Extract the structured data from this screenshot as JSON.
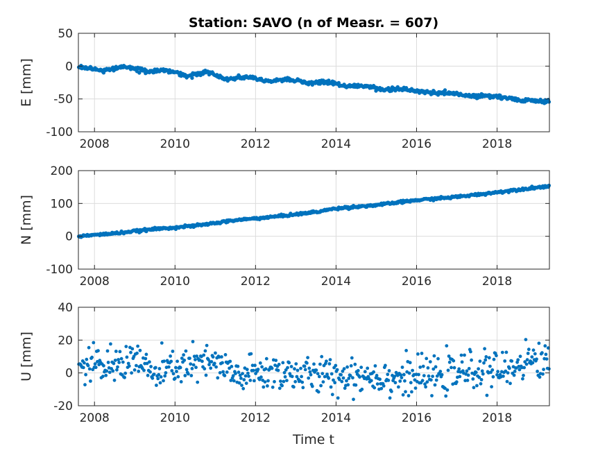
{
  "chart_data": {
    "title": "Station: SAVO (n of Measr. = 607)",
    "xlabel": "Time t",
    "type": "scatter",
    "marker_color": "#0072BD",
    "n_points": 607,
    "xlim": [
      2007.6,
      2019.3
    ],
    "xticks": [
      2008,
      2010,
      2012,
      2014,
      2016,
      2018
    ],
    "grid": true,
    "panels": [
      {
        "name": "E",
        "ylabel": "E [mm]",
        "ylim": [
          -100,
          50
        ],
        "yticks": [
          -100,
          -50,
          0,
          50
        ],
        "trend_knots": [
          [
            2007.6,
            -1
          ],
          [
            2008.2,
            -7
          ],
          [
            2008.8,
            -1
          ],
          [
            2009.3,
            -8
          ],
          [
            2009.8,
            -6
          ],
          [
            2010.3,
            -15
          ],
          [
            2010.8,
            -9
          ],
          [
            2011.3,
            -20
          ],
          [
            2011.8,
            -16
          ],
          [
            2012.3,
            -23
          ],
          [
            2012.8,
            -20
          ],
          [
            2013.3,
            -26
          ],
          [
            2013.8,
            -24
          ],
          [
            2014.3,
            -31
          ],
          [
            2014.8,
            -30
          ],
          [
            2015.2,
            -36
          ],
          [
            2015.7,
            -35
          ],
          [
            2016.3,
            -40
          ],
          [
            2016.8,
            -41
          ],
          [
            2017.4,
            -46
          ],
          [
            2017.9,
            -46
          ],
          [
            2018.5,
            -51
          ],
          [
            2019.3,
            -54
          ]
        ],
        "noise_mm": 1.5
      },
      {
        "name": "N",
        "ylabel": "N [mm]",
        "ylim": [
          -100,
          200
        ],
        "yticks": [
          -100,
          0,
          100,
          200
        ],
        "trend_knots": [
          [
            2007.6,
            0
          ],
          [
            2008.5,
            9
          ],
          [
            2009.5,
            22
          ],
          [
            2010.5,
            32
          ],
          [
            2011.5,
            49
          ],
          [
            2012.5,
            60
          ],
          [
            2013.5,
            74
          ],
          [
            2014.0,
            85
          ],
          [
            2015.0,
            95
          ],
          [
            2016.0,
            110
          ],
          [
            2017.0,
            120
          ],
          [
            2018.0,
            134
          ],
          [
            2018.5,
            142
          ],
          [
            2019.3,
            153
          ]
        ],
        "noise_mm": 1.8
      },
      {
        "name": "U",
        "ylabel": "U [mm]",
        "ylim": [
          -20,
          40
        ],
        "yticks": [
          -20,
          0,
          20,
          40
        ],
        "trend_knots": [
          [
            2007.6,
            4
          ],
          [
            2008.5,
            4
          ],
          [
            2009.0,
            10
          ],
          [
            2009.5,
            -2
          ],
          [
            2010.0,
            4
          ],
          [
            2011.0,
            6
          ],
          [
            2011.5,
            -2
          ],
          [
            2012.5,
            1
          ],
          [
            2013.5,
            -2
          ],
          [
            2014.5,
            -1
          ],
          [
            2015.5,
            -3
          ],
          [
            2016.5,
            -2
          ],
          [
            2017.5,
            2
          ],
          [
            2018.3,
            1
          ],
          [
            2018.6,
            8
          ],
          [
            2019.3,
            7
          ]
        ],
        "noise_mm": 5.5
      }
    ]
  }
}
